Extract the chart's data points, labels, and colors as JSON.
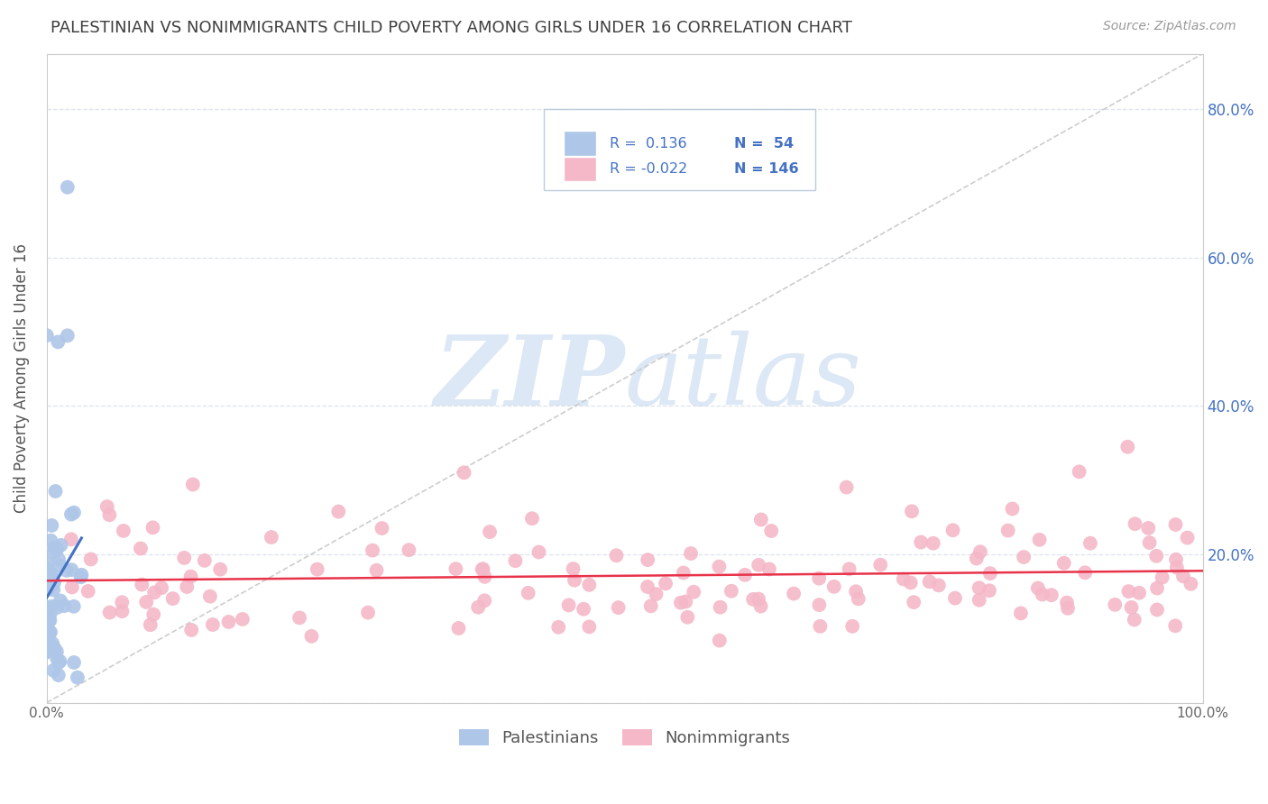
{
  "title": "PALESTINIAN VS NONIMMIGRANTS CHILD POVERTY AMONG GIRLS UNDER 16 CORRELATION CHART",
  "source": "Source: ZipAtlas.com",
  "ylabel": "Child Poverty Among Girls Under 16",
  "xlim": [
    0,
    1
  ],
  "ylim": [
    0,
    0.875
  ],
  "xticks": [
    0.0,
    0.1,
    0.2,
    0.3,
    0.4,
    0.5,
    0.6,
    0.7,
    0.8,
    0.9,
    1.0
  ],
  "xticklabels": [
    "0.0%",
    "",
    "",
    "",
    "",
    "",
    "",
    "",
    "",
    "",
    "100.0%"
  ],
  "yticks": [
    0.0,
    0.2,
    0.4,
    0.6,
    0.8
  ],
  "yticklabels_right": [
    "",
    "20.0%",
    "40.0%",
    "60.0%",
    "80.0%"
  ],
  "legend_r1": "0.136",
  "legend_n1": "54",
  "legend_r2": "-0.022",
  "legend_n2": "146",
  "palestinian_color": "#aec6e8",
  "nonimmigrant_color": "#f4b8c8",
  "trend_blue": "#4472c4",
  "trend_red": "#e8334a",
  "diagonal_color": "#c8c8c8",
  "background": "#ffffff",
  "watermark_zip": "ZIP",
  "watermark_atlas": "atlas",
  "watermark_color": "#dce8f5",
  "title_color": "#404040",
  "legend_text_color": "#4472c4",
  "seed": 42,
  "n_palestinian": 54,
  "n_nonimmigrant": 146,
  "R_palestinian": 0.136,
  "R_nonimmigrant": -0.022
}
